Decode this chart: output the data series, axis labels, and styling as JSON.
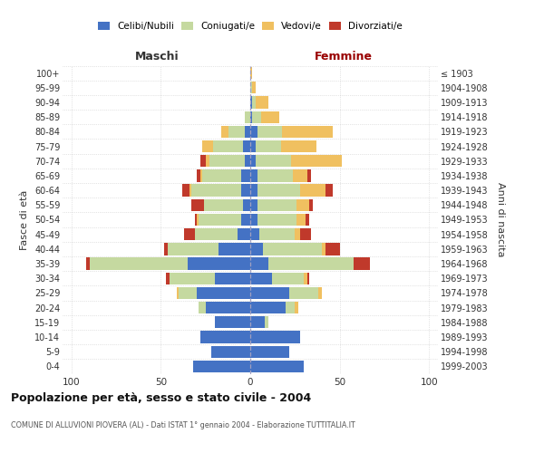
{
  "age_groups": [
    "0-4",
    "5-9",
    "10-14",
    "15-19",
    "20-24",
    "25-29",
    "30-34",
    "35-39",
    "40-44",
    "45-49",
    "50-54",
    "55-59",
    "60-64",
    "65-69",
    "70-74",
    "75-79",
    "80-84",
    "85-89",
    "90-94",
    "95-99",
    "100+"
  ],
  "birth_years": [
    "1999-2003",
    "1994-1998",
    "1989-1993",
    "1984-1988",
    "1979-1983",
    "1974-1978",
    "1969-1973",
    "1964-1968",
    "1959-1963",
    "1954-1958",
    "1949-1953",
    "1944-1948",
    "1939-1943",
    "1934-1938",
    "1929-1933",
    "1924-1928",
    "1919-1923",
    "1914-1918",
    "1909-1913",
    "1904-1908",
    "≤ 1903"
  ],
  "colors": {
    "celibi": "#4472c4",
    "coniugati": "#c5d9a0",
    "vedovi": "#f0c060",
    "divorziati": "#c0392b"
  },
  "maschi": {
    "celibi": [
      32,
      22,
      28,
      20,
      25,
      30,
      20,
      35,
      18,
      7,
      5,
      4,
      5,
      5,
      3,
      4,
      3,
      0,
      0,
      0,
      0
    ],
    "coniugati": [
      0,
      0,
      0,
      0,
      4,
      10,
      25,
      55,
      28,
      24,
      24,
      22,
      28,
      22,
      20,
      17,
      9,
      3,
      0,
      0,
      0
    ],
    "vedovi": [
      0,
      0,
      0,
      0,
      0,
      1,
      0,
      0,
      0,
      0,
      1,
      0,
      1,
      1,
      2,
      6,
      4,
      0,
      0,
      0,
      0
    ],
    "divorziati": [
      0,
      0,
      0,
      0,
      0,
      0,
      2,
      2,
      2,
      6,
      1,
      7,
      4,
      2,
      3,
      0,
      0,
      0,
      0,
      0,
      0
    ]
  },
  "femmine": {
    "celibi": [
      30,
      22,
      28,
      8,
      20,
      22,
      12,
      10,
      7,
      5,
      4,
      4,
      4,
      4,
      3,
      3,
      4,
      1,
      1,
      0,
      0
    ],
    "coniugati": [
      0,
      0,
      0,
      2,
      5,
      16,
      18,
      48,
      33,
      20,
      22,
      22,
      24,
      20,
      20,
      14,
      14,
      5,
      2,
      1,
      0
    ],
    "vedovi": [
      0,
      0,
      0,
      0,
      2,
      2,
      2,
      0,
      2,
      3,
      5,
      7,
      14,
      8,
      28,
      20,
      28,
      10,
      7,
      2,
      1
    ],
    "divorziati": [
      0,
      0,
      0,
      0,
      0,
      0,
      1,
      9,
      8,
      6,
      2,
      2,
      4,
      2,
      0,
      0,
      0,
      0,
      0,
      0,
      0
    ]
  },
  "xlim": 100,
  "title": "Popolazione per età, sesso e stato civile - 2004",
  "subtitle": "COMUNE DI ALLUVIONI PIOVERA (AL) - Dati ISTAT 1° gennaio 2004 - Elaborazione TUTTITALIA.IT",
  "ylabel_left": "Fasce di età",
  "ylabel_right": "Anni di nascita",
  "xlabel_left": "Maschi",
  "xlabel_right": "Femmine",
  "legend_labels": [
    "Celibi/Nubili",
    "Coniugati/e",
    "Vedovi/e",
    "Divorziati/e"
  ]
}
